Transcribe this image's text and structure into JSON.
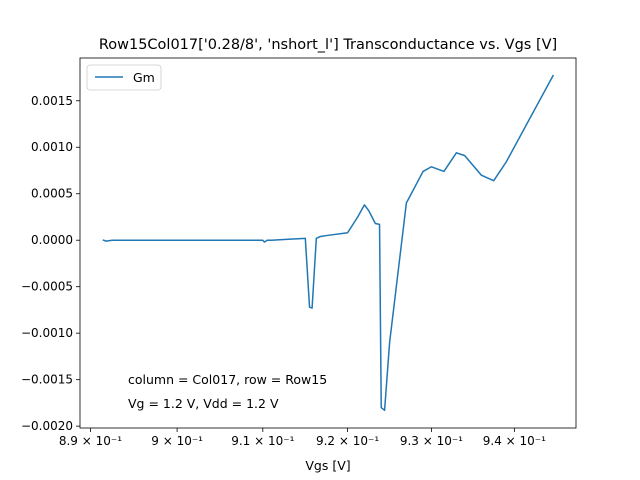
{
  "chart_data": {
    "type": "line",
    "title": "Row15Col017['0.28/8', 'nshort_l'] Transconductance vs. Vgs [V]",
    "xlabel": "Vgs [V]",
    "ylabel": "",
    "xscale": "log",
    "xlim": [
      0.8888,
      0.9475
    ],
    "ylim": [
      -0.00202,
      0.00196
    ],
    "grid": false,
    "legend_position": "top-left",
    "line_color": "#1f77b4",
    "x_ticks": [
      {
        "value": 0.89,
        "label": "8.9 × 10⁻¹"
      },
      {
        "value": 0.9,
        "label": "9 × 10⁻¹"
      },
      {
        "value": 0.91,
        "label": "9.1 × 10⁻¹"
      },
      {
        "value": 0.92,
        "label": "9.2 × 10⁻¹"
      },
      {
        "value": 0.93,
        "label": "9.3 × 10⁻¹"
      },
      {
        "value": 0.94,
        "label": "9.4 × 10⁻¹"
      }
    ],
    "y_ticks": [
      {
        "value": 0.0015,
        "label": "0.0015"
      },
      {
        "value": 0.001,
        "label": "0.0010"
      },
      {
        "value": 0.0005,
        "label": "0.0005"
      },
      {
        "value": 0.0,
        "label": "0.0000"
      },
      {
        "value": -0.0005,
        "label": "−0.0005"
      },
      {
        "value": -0.001,
        "label": "−0.0010"
      },
      {
        "value": -0.0015,
        "label": "−0.0015"
      },
      {
        "value": -0.002,
        "label": "−0.0020"
      }
    ],
    "series": [
      {
        "name": "Gm",
        "x": [
          0.8915,
          0.8918,
          0.8925,
          0.895,
          0.9,
          0.905,
          0.91,
          0.9102,
          0.9105,
          0.911,
          0.913,
          0.915,
          0.9155,
          0.9158,
          0.9163,
          0.9168,
          0.9175,
          0.92,
          0.9212,
          0.922,
          0.9225,
          0.9233,
          0.9238,
          0.924,
          0.9244,
          0.925,
          0.927,
          0.929,
          0.93,
          0.9315,
          0.933,
          0.934,
          0.936,
          0.9375,
          0.939,
          0.9447
        ],
        "y": [
          0.0,
          -1e-05,
          0.0,
          0.0,
          0.0,
          0.0,
          0.0,
          -2e-05,
          0.0,
          0.0,
          1e-05,
          2e-05,
          -0.00072,
          -0.00073,
          2e-05,
          4e-05,
          5e-05,
          8e-05,
          0.00025,
          0.00038,
          0.00032,
          0.00018,
          0.00017,
          -0.0018,
          -0.00183,
          -0.0011,
          0.0004,
          0.00074,
          0.00079,
          0.00074,
          0.00094,
          0.00091,
          0.0007,
          0.00064,
          0.00084,
          0.00177
        ]
      }
    ],
    "annotations": [
      "column = Col017, row = Row15",
      "Vg = 1.2 V, Vdd = 1.2 V"
    ]
  }
}
